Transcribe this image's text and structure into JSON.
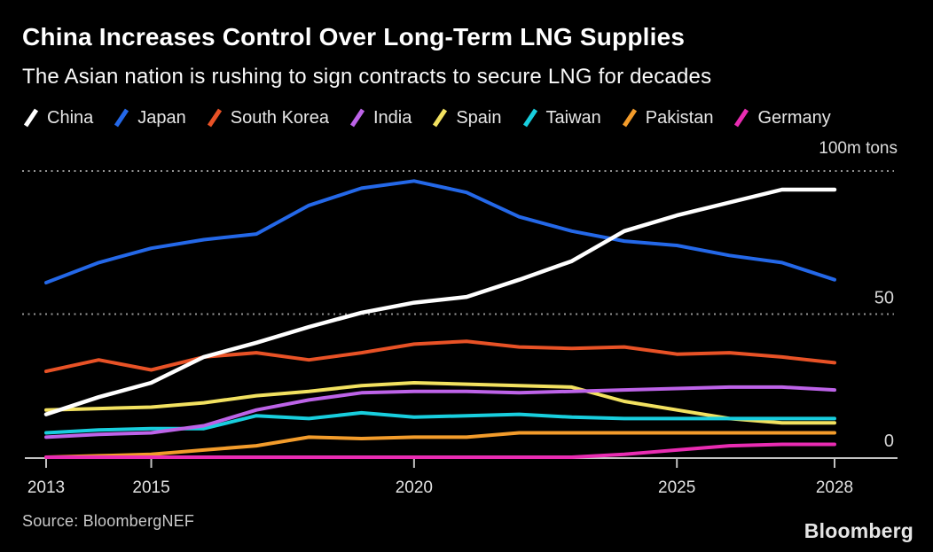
{
  "header": {
    "title": "China Increases Control Over Long-Term LNG Supplies",
    "subtitle": "The Asian nation is rushing to sign contracts to secure LNG for decades"
  },
  "footer": {
    "source": "Source: BloombergNEF",
    "brand": "Bloomberg"
  },
  "chart_data": {
    "type": "line",
    "title": "China Increases Control Over Long-Term LNG Supplies",
    "subtitle": "The Asian nation is rushing to sign contracts to secure LNG for decades",
    "unit": "100m tons",
    "background": "#000000",
    "grid": "dotted-horizontal",
    "legend_position": "top",
    "x": [
      2013,
      2014,
      2015,
      2016,
      2017,
      2018,
      2019,
      2020,
      2021,
      2022,
      2023,
      2024,
      2025,
      2026,
      2027,
      2028
    ],
    "x_ticks": [
      2013,
      2015,
      2020,
      2025,
      2028
    ],
    "ylim": [
      0,
      100
    ],
    "y_gridlines": [
      50,
      100
    ],
    "y_labels": [
      {
        "value": 50,
        "label": "50"
      },
      {
        "value": 0,
        "label": "0"
      }
    ],
    "series": [
      {
        "name": "China",
        "color": "#ffffff",
        "values": [
          15,
          21,
          26,
          35,
          40,
          45.5,
          50.5,
          54,
          56,
          62,
          68.5,
          79,
          84.5,
          89,
          93.5,
          93.5
        ]
      },
      {
        "name": "Japan",
        "color": "#2468e8",
        "values": [
          61,
          68,
          73,
          76,
          78,
          88,
          94,
          96.5,
          92.5,
          84,
          79,
          75.5,
          74,
          70.5,
          68,
          62
        ]
      },
      {
        "name": "South Korea",
        "color": "#e85226",
        "values": [
          30,
          34,
          30.5,
          35,
          36.5,
          34,
          36.5,
          39.5,
          40.5,
          38.5,
          38,
          38.5,
          36,
          36.5,
          35,
          33
        ]
      },
      {
        "name": "India",
        "color": "#bd63e8",
        "values": [
          7,
          8,
          8.5,
          11,
          16.5,
          20,
          22.5,
          23,
          23,
          22.5,
          23,
          23.5,
          24,
          24.5,
          24.5,
          23.5
        ]
      },
      {
        "name": "Spain",
        "color": "#f2e160",
        "values": [
          16.5,
          17,
          17.5,
          19,
          21.5,
          23,
          25,
          26,
          25.5,
          25,
          24.5,
          19.5,
          16.5,
          13.5,
          12,
          12
        ]
      },
      {
        "name": "Taiwan",
        "color": "#18cede",
        "values": [
          8.5,
          9.5,
          10,
          10,
          14.5,
          13.5,
          15.5,
          14,
          14.5,
          15,
          14,
          13.5,
          13.5,
          13.5,
          13.5,
          13.5
        ]
      },
      {
        "name": "Pakistan",
        "color": "#f39c2b",
        "values": [
          0,
          0.5,
          1,
          2.5,
          4,
          7,
          6.5,
          7,
          7,
          8.5,
          8.5,
          8.5,
          8.5,
          8.5,
          8.5,
          8.5
        ]
      },
      {
        "name": "Germany",
        "color": "#e92cb2",
        "values": [
          0,
          0,
          0,
          0,
          0,
          0,
          0,
          0,
          0,
          0,
          0,
          1,
          2.5,
          4,
          4.5,
          4.5
        ]
      }
    ]
  }
}
